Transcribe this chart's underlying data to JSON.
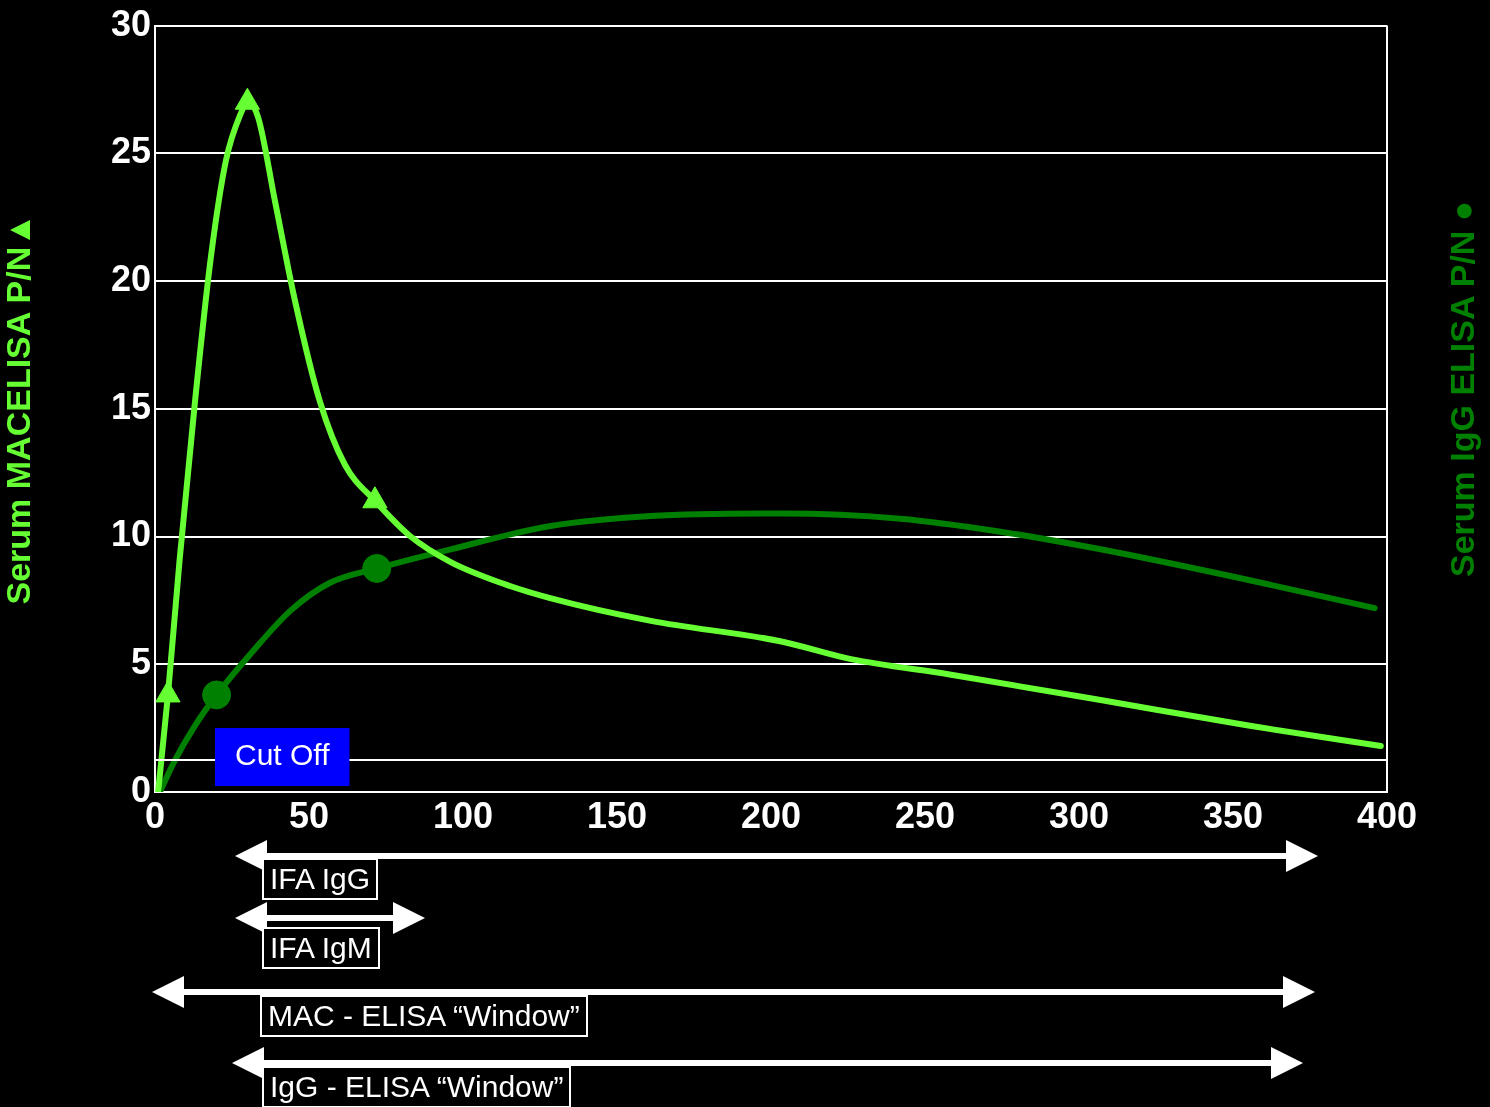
{
  "chart_data": {
    "type": "line",
    "ylabel": "Serum MACELISA P/N▲",
    "y2label": "Serum IgG ELISA P/N ●",
    "xlim": [
      0,
      400
    ],
    "xticks": [
      0,
      50,
      100,
      150,
      200,
      250,
      300,
      350,
      400
    ],
    "ylim": [
      0,
      30
    ],
    "yticks": [
      0,
      5,
      10,
      15,
      20,
      25,
      30
    ],
    "grid": "y",
    "legend": false,
    "line_style": "solid",
    "ref_lines": [
      {
        "axis": "y",
        "value": 1.25,
        "label": "Cut Off",
        "color": "#ffffff"
      }
    ],
    "annotations": [
      "IFA IgG",
      "IFA IgM",
      "MAC - ELISA “Window”",
      "IgG - ELISA “Window”"
    ],
    "series": [
      {
        "type": "line",
        "color": "#66ff33",
        "marker": "none",
        "x": [
          1,
          4.2,
          8,
          13,
          18,
          23,
          28,
          30,
          33.5,
          39,
          45.5,
          53.5,
          61.7,
          71.4,
          83,
          96,
          112,
          128,
          161,
          203,
          226,
          258,
          307,
          355,
          398
        ],
        "values": [
          0,
          3.8,
          9.1,
          15.3,
          20.8,
          24.7,
          26.6,
          27,
          26.4,
          23.1,
          19.2,
          15.3,
          12.8,
          11.4,
          10,
          9,
          8.2,
          7.6,
          6.7,
          5.9,
          5.2,
          4.6,
          3.6,
          2.6,
          1.8
        ]
      },
      {
        "type": "line",
        "color": "#008000",
        "marker": "none",
        "x": [
          1.6,
          6.5,
          13,
          20,
          31,
          44,
          57,
          72,
          96,
          128,
          161,
          203,
          242,
          274,
          307,
          355,
          396
        ],
        "values": [
          0,
          1.25,
          2.6,
          3.8,
          5.4,
          7.1,
          8.2,
          8.75,
          9.5,
          10.4,
          10.8,
          10.9,
          10.7,
          10.2,
          9.5,
          8.3,
          7.2
        ]
      },
      {
        "type": "scatter",
        "color": "#66ff33",
        "marker": "triangle",
        "x": [
          4.2,
          30,
          71.4
        ],
        "values": [
          3.8,
          27,
          11.4
        ]
      },
      {
        "type": "scatter",
        "color": "#008000",
        "marker": "circle",
        "x": [
          20,
          72
        ],
        "values": [
          3.8,
          8.75
        ]
      }
    ]
  }
}
